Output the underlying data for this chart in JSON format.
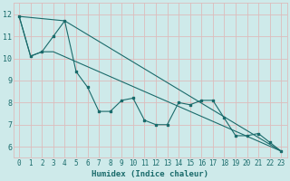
{
  "xlabel": "Humidex (Indice chaleur)",
  "background_color": "#ceeaea",
  "grid_color": "#ddbcbc",
  "line_color": "#1a6b6b",
  "xlim": [
    -0.5,
    23.5
  ],
  "ylim": [
    5.5,
    12.5
  ],
  "xticks": [
    0,
    1,
    2,
    3,
    4,
    5,
    6,
    7,
    8,
    9,
    10,
    11,
    12,
    13,
    14,
    15,
    16,
    17,
    18,
    19,
    20,
    21,
    22,
    23
  ],
  "yticks": [
    6,
    7,
    8,
    9,
    10,
    11,
    12
  ],
  "line1_x": [
    0,
    1,
    2,
    3,
    4,
    5,
    6,
    7,
    8,
    9,
    10,
    11,
    12,
    13,
    14,
    15,
    16,
    17,
    18,
    19,
    20,
    21,
    22,
    23
  ],
  "line1_y": [
    11.9,
    10.1,
    10.3,
    11.0,
    11.7,
    9.4,
    8.7,
    7.6,
    7.6,
    8.1,
    8.2,
    7.2,
    7.0,
    7.0,
    8.0,
    7.9,
    8.1,
    8.1,
    7.3,
    6.5,
    6.5,
    6.6,
    6.2,
    5.8
  ],
  "line2_x": [
    0,
    1,
    2,
    3,
    23
  ],
  "line2_y": [
    11.9,
    10.1,
    10.3,
    10.3,
    5.8
  ],
  "line3_x": [
    0,
    4,
    23
  ],
  "line3_y": [
    11.9,
    11.7,
    5.8
  ],
  "xlabel_fontsize": 6.5,
  "tick_fontsize": 5.5,
  "linewidth": 0.8,
  "markersize": 2.0
}
